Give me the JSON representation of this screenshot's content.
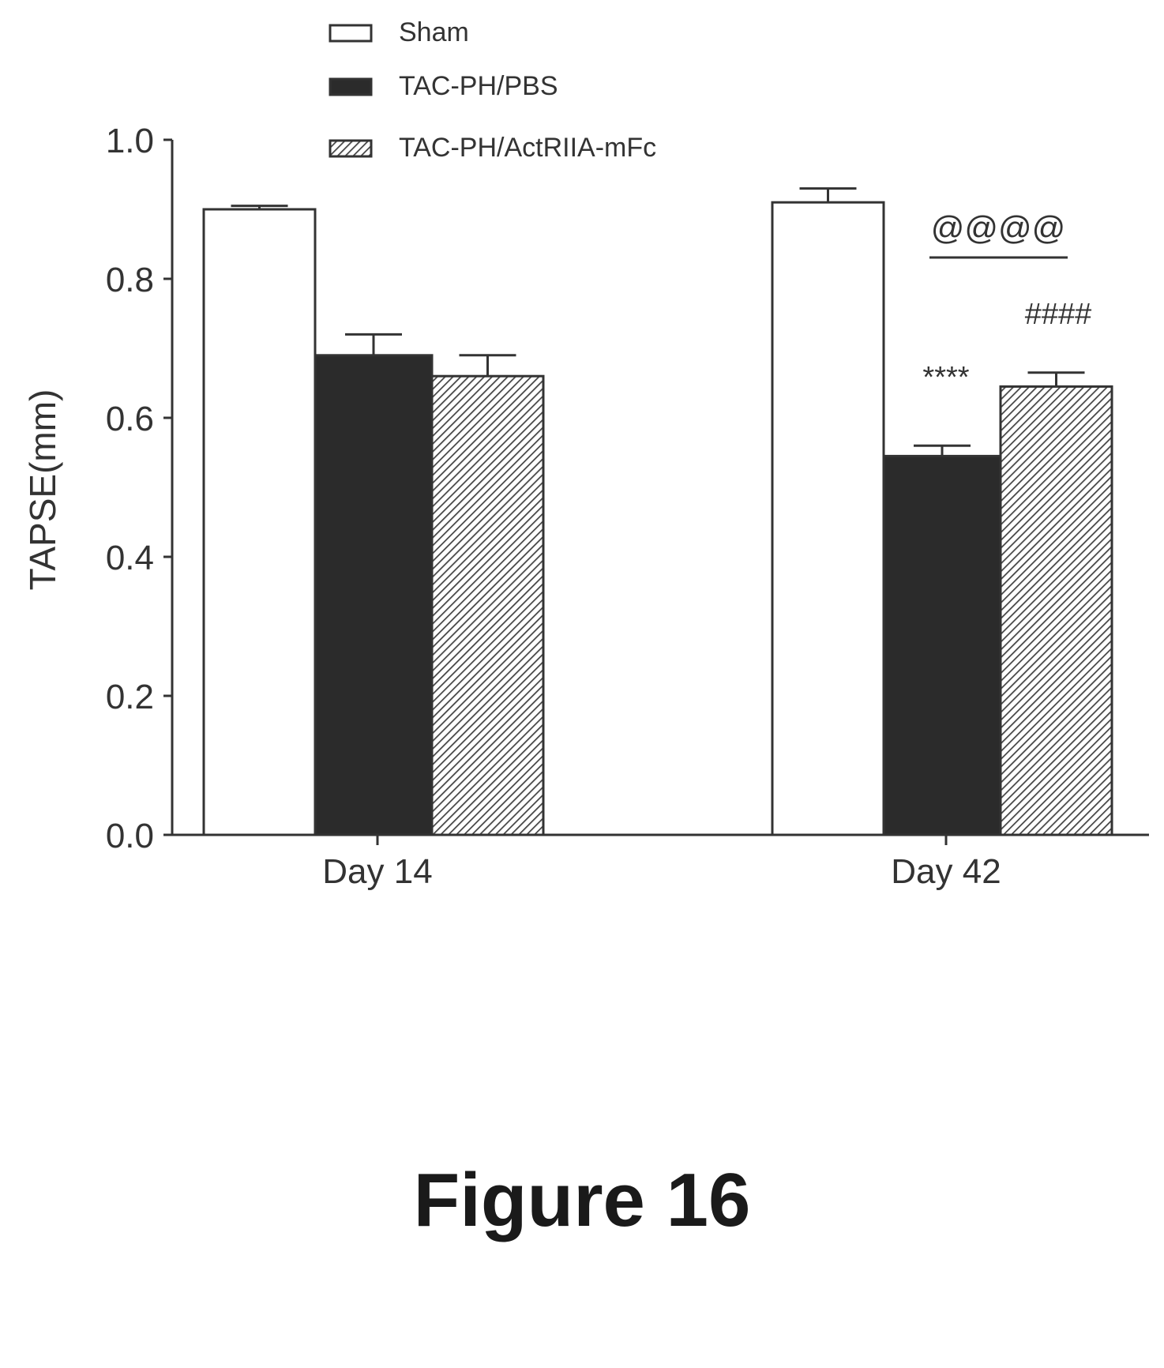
{
  "figure": {
    "caption": "Figure 16"
  },
  "chart_data": {
    "type": "bar",
    "title": "",
    "xlabel": "",
    "ylabel": "TAPSE(mm)",
    "ylim": [
      0.0,
      1.0
    ],
    "yticks": [
      "0.0",
      "0.2",
      "0.4",
      "0.6",
      "0.8",
      "1.0"
    ],
    "categories": [
      "Day 14",
      "Day 42"
    ],
    "legend_position": "top",
    "series": [
      {
        "name": "Sham",
        "fill": "white",
        "values": [
          0.9,
          0.91
        ],
        "errors": [
          0.005,
          0.02
        ]
      },
      {
        "name": "TAC-PH/PBS",
        "fill": "black",
        "values": [
          0.69,
          0.545
        ],
        "errors": [
          0.03,
          0.015
        ]
      },
      {
        "name": "TAC-PH/ActRIIA-mFc",
        "fill": "hatched",
        "values": [
          0.66,
          0.645
        ],
        "errors": [
          0.03,
          0.02
        ]
      }
    ],
    "annotations": [
      {
        "text": "****",
        "category": "Day 42",
        "series": "TAC-PH/PBS"
      },
      {
        "text": "####",
        "category": "Day 42",
        "series": "TAC-PH/ActRIIA-mFc"
      },
      {
        "text": "@@@@",
        "category": "Day 42",
        "between": [
          "TAC-PH/PBS",
          "TAC-PH/ActRIIA-mFc"
        ]
      }
    ],
    "colors": {
      "axis": "#333333",
      "dark_bar": "#2b2b2b",
      "hatch_stroke": "#444444",
      "text": "#333333"
    }
  }
}
